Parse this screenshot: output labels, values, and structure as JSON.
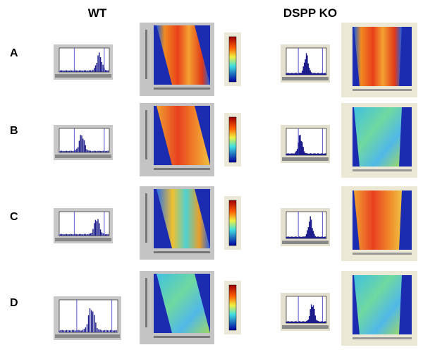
{
  "header": {
    "wt": "WT",
    "ko": "DSPP KO"
  },
  "rows": [
    {
      "label": "A"
    },
    {
      "label": "B"
    },
    {
      "label": "C"
    },
    {
      "label": "D"
    }
  ]
}
